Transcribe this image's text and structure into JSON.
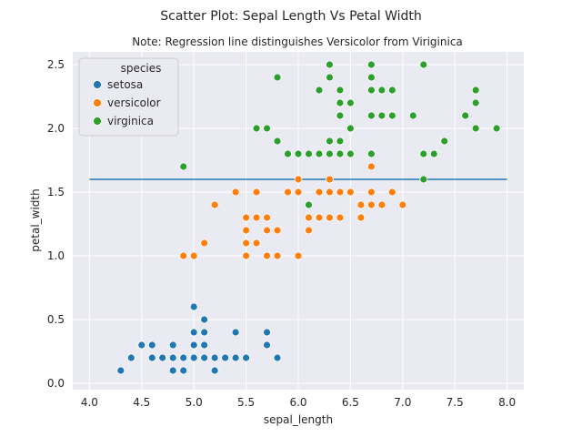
{
  "chart_data": {
    "type": "scatter",
    "title": "Scatter Plot: Sepal Length Vs Petal Width",
    "subtitle": "Note: Regression line distinguishes Versicolor from Viriginica",
    "xlabel": "sepal_length",
    "ylabel": "petal_width",
    "xlim": [
      3.84,
      8.16
    ],
    "ylim": [
      -0.05,
      2.6
    ],
    "xticks": [
      4.0,
      4.5,
      5.0,
      5.5,
      6.0,
      6.5,
      7.0,
      7.5,
      8.0
    ],
    "yticks": [
      0.0,
      0.5,
      1.0,
      1.5,
      2.0,
      2.5
    ],
    "xtick_labels": [
      "4.0",
      "4.5",
      "5.0",
      "5.5",
      "6.0",
      "6.5",
      "7.0",
      "7.5",
      "8.0"
    ],
    "ytick_labels": [
      "0.0",
      "0.5",
      "1.0",
      "1.5",
      "2.0",
      "2.5"
    ],
    "grid": true,
    "legend": {
      "title": "species",
      "placement": "top-left"
    },
    "line": {
      "x": [
        4.0,
        8.0
      ],
      "y": [
        1.6,
        1.6
      ],
      "color": "#1f77b4"
    },
    "series": [
      {
        "name": "setosa",
        "color": "#1f77b4",
        "points": [
          [
            4.3,
            0.1
          ],
          [
            4.4,
            0.2
          ],
          [
            4.5,
            0.3
          ],
          [
            4.6,
            0.2
          ],
          [
            4.6,
            0.3
          ],
          [
            4.7,
            0.2
          ],
          [
            4.8,
            0.1
          ],
          [
            4.8,
            0.2
          ],
          [
            4.8,
            0.3
          ],
          [
            4.9,
            0.1
          ],
          [
            4.9,
            0.2
          ],
          [
            5.0,
            0.2
          ],
          [
            5.0,
            0.3
          ],
          [
            5.0,
            0.4
          ],
          [
            5.0,
            0.6
          ],
          [
            5.1,
            0.2
          ],
          [
            5.1,
            0.3
          ],
          [
            5.1,
            0.4
          ],
          [
            5.1,
            0.5
          ],
          [
            5.2,
            0.1
          ],
          [
            5.2,
            0.2
          ],
          [
            5.3,
            0.2
          ],
          [
            5.4,
            0.2
          ],
          [
            5.4,
            0.4
          ],
          [
            5.5,
            0.2
          ],
          [
            5.7,
            0.3
          ],
          [
            5.7,
            0.4
          ],
          [
            5.8,
            0.2
          ]
        ]
      },
      {
        "name": "versicolor",
        "color": "#ff7f0e",
        "points": [
          [
            4.9,
            1.0
          ],
          [
            5.0,
            1.0
          ],
          [
            5.1,
            1.1
          ],
          [
            5.2,
            1.4
          ],
          [
            5.4,
            1.5
          ],
          [
            5.5,
            1.0
          ],
          [
            5.5,
            1.1
          ],
          [
            5.5,
            1.2
          ],
          [
            5.5,
            1.3
          ],
          [
            5.6,
            1.1
          ],
          [
            5.6,
            1.3
          ],
          [
            5.6,
            1.5
          ],
          [
            5.7,
            1.0
          ],
          [
            5.7,
            1.2
          ],
          [
            5.7,
            1.3
          ],
          [
            5.8,
            1.0
          ],
          [
            5.8,
            1.2
          ],
          [
            5.9,
            1.5
          ],
          [
            6.0,
            1.0
          ],
          [
            6.0,
            1.5
          ],
          [
            6.0,
            1.6
          ],
          [
            6.1,
            1.2
          ],
          [
            6.1,
            1.3
          ],
          [
            6.1,
            1.4
          ],
          [
            6.2,
            1.3
          ],
          [
            6.2,
            1.5
          ],
          [
            6.3,
            1.3
          ],
          [
            6.3,
            1.5
          ],
          [
            6.3,
            1.6
          ],
          [
            6.4,
            1.3
          ],
          [
            6.4,
            1.5
          ],
          [
            6.5,
            1.5
          ],
          [
            6.6,
            1.3
          ],
          [
            6.6,
            1.4
          ],
          [
            6.7,
            1.4
          ],
          [
            6.7,
            1.5
          ],
          [
            6.7,
            1.7
          ],
          [
            6.8,
            1.4
          ],
          [
            6.9,
            1.5
          ],
          [
            7.0,
            1.4
          ]
        ]
      },
      {
        "name": "virginica",
        "color": "#2ca02c",
        "points": [
          [
            4.9,
            1.7
          ],
          [
            5.6,
            2.0
          ],
          [
            5.7,
            2.0
          ],
          [
            5.8,
            1.9
          ],
          [
            5.8,
            2.4
          ],
          [
            5.9,
            1.8
          ],
          [
            6.0,
            1.8
          ],
          [
            6.1,
            1.4
          ],
          [
            6.1,
            1.8
          ],
          [
            6.2,
            1.8
          ],
          [
            6.2,
            2.3
          ],
          [
            6.3,
            1.8
          ],
          [
            6.3,
            1.9
          ],
          [
            6.3,
            2.4
          ],
          [
            6.3,
            2.5
          ],
          [
            6.4,
            1.8
          ],
          [
            6.4,
            1.9
          ],
          [
            6.4,
            2.1
          ],
          [
            6.4,
            2.2
          ],
          [
            6.4,
            2.3
          ],
          [
            6.5,
            1.8
          ],
          [
            6.5,
            2.0
          ],
          [
            6.5,
            2.2
          ],
          [
            6.7,
            1.8
          ],
          [
            6.7,
            2.1
          ],
          [
            6.7,
            2.3
          ],
          [
            6.7,
            2.4
          ],
          [
            6.7,
            2.5
          ],
          [
            6.8,
            2.1
          ],
          [
            6.8,
            2.3
          ],
          [
            6.9,
            2.1
          ],
          [
            6.9,
            2.3
          ],
          [
            7.1,
            2.1
          ],
          [
            7.2,
            1.6
          ],
          [
            7.2,
            1.8
          ],
          [
            7.2,
            2.5
          ],
          [
            7.3,
            1.8
          ],
          [
            7.4,
            1.9
          ],
          [
            7.6,
            2.1
          ],
          [
            7.7,
            2.0
          ],
          [
            7.7,
            2.2
          ],
          [
            7.7,
            2.3
          ],
          [
            7.9,
            2.0
          ]
        ]
      }
    ]
  }
}
